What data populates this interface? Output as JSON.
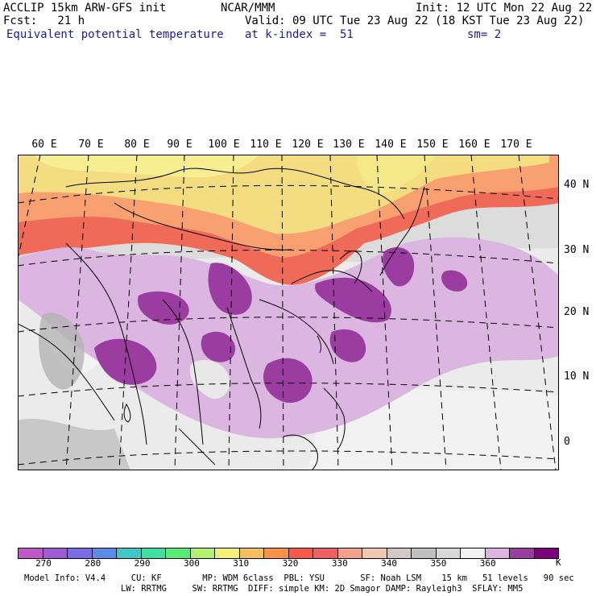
{
  "header": {
    "left_line1": "ACCLIP 15km ARW-GFS init",
    "left_line2": "Fcst:   21 h",
    "left_line3": "Equivalent potential temperature",
    "center_line1": "NCAR/MMM",
    "center_line2": "Valid: 09 UTC Tue 23 Aug 22 (18 KST Tue 23 Aug 22)",
    "center_line3": "at k-index =  51",
    "right_line1": "Init: 12 UTC Mon 22 Aug 22",
    "right_line3": "sm= 2"
  },
  "map": {
    "lon_labels": [
      "60 E",
      "70 E",
      "80 E",
      "90 E",
      "100 E",
      "110 E",
      "120 E",
      "130 E",
      "140 E",
      "150 E",
      "160 E",
      "170 E"
    ],
    "lat_labels": [
      "40 N",
      "30 N",
      "20 N",
      "10 N",
      "0"
    ]
  },
  "colorbar": {
    "colors": [
      "#c057c8",
      "#a05ad6",
      "#7b6be4",
      "#5a8ce8",
      "#3ec8c8",
      "#3ee0a0",
      "#58ec72",
      "#b4f070",
      "#f4f078",
      "#f4c060",
      "#f89448",
      "#f85a48",
      "#f06060",
      "#f4a08a",
      "#f0c8b0",
      "#d2c8c4",
      "#c0c0c0",
      "#d8d8d8",
      "#f2f2f2",
      "#dcb4e0",
      "#9b3ca0",
      "#7a007e"
    ],
    "labels": [
      "270",
      "280",
      "290",
      "300",
      "310",
      "320",
      "330",
      "340",
      "350",
      "360"
    ],
    "unit": "K"
  },
  "footer": {
    "line1": "Model Info: V4.4     CU: KF        MP: WDM 6class  PBL: YSU       SF: Noah LSM    15 km   51 levels   90 sec",
    "line2": "LW: RRTMG     SW: RRTMG  DIFF: simple KM: 2D Smagor DAMP: Rayleigh3  SFLAY: MM5"
  }
}
